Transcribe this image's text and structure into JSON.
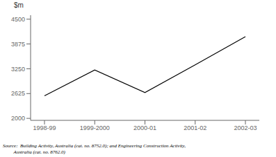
{
  "chart_data": {
    "type": "line",
    "ylabel": "$m",
    "categories": [
      "1998-99",
      "1999-2000",
      "2000-01",
      "2001-02",
      "2002-03"
    ],
    "values": [
      2570,
      3220,
      2650,
      3350,
      4060
    ],
    "color": "#000000",
    "marker": "none",
    "ylim": [
      1950,
      4600
    ],
    "yticks": [
      2000,
      2625,
      3250,
      3875,
      4500
    ],
    "grid": false,
    "annotations": [
      "Source:  Building Activity, Australia (cat. no. 8752.0); and Engineering Construction Activity,",
      "         Australia (cat. no. 8762.0)"
    ]
  }
}
